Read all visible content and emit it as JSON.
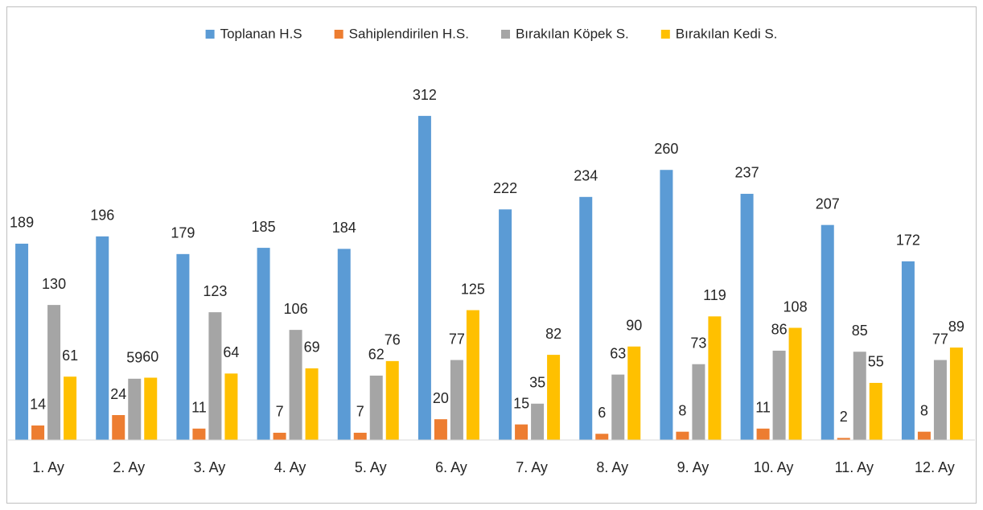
{
  "chart_data": {
    "type": "bar",
    "categories": [
      "1. Ay",
      "2. Ay",
      "3. Ay",
      "4. Ay",
      "5. Ay",
      "6. Ay",
      "7. Ay",
      "8. Ay",
      "9. Ay",
      "10. Ay",
      "11. Ay",
      "12. Ay"
    ],
    "series": [
      {
        "name": "Toplanan H.S",
        "color": "#5b9bd5",
        "values": [
          189,
          196,
          179,
          185,
          184,
          312,
          222,
          234,
          260,
          237,
          207,
          172
        ]
      },
      {
        "name": "Sahiplendirilen H.S.",
        "color": "#ed7d31",
        "values": [
          14,
          24,
          11,
          7,
          7,
          20,
          15,
          6,
          8,
          11,
          2,
          8
        ]
      },
      {
        "name": "Bırakılan Köpek S.",
        "color": "#a5a5a5",
        "values": [
          130,
          59,
          123,
          106,
          62,
          77,
          35,
          63,
          73,
          86,
          85,
          77
        ]
      },
      {
        "name": "Bırakılan Kedi S.",
        "color": "#ffc000",
        "values": [
          61,
          60,
          64,
          69,
          76,
          125,
          82,
          90,
          119,
          108,
          55,
          89
        ]
      }
    ],
    "ylim": [
      0,
      350
    ],
    "legend": "top"
  }
}
